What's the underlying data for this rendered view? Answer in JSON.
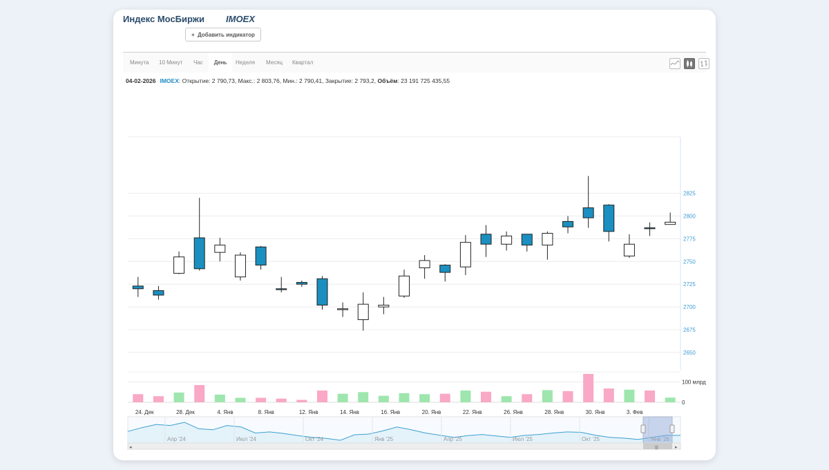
{
  "header": {
    "title": "Индекс МосБиржи",
    "ticker": "IMOEX",
    "add_indicator": "Добавить индикатор",
    "add_icon": "+"
  },
  "tabs": [
    {
      "label": "Минута",
      "active": false
    },
    {
      "label": "10 Минут",
      "active": false
    },
    {
      "label": "Час",
      "active": false
    },
    {
      "label": "День",
      "active": true
    },
    {
      "label": "Неделя",
      "active": false
    },
    {
      "label": "Месяц",
      "active": false
    },
    {
      "label": "Квартал",
      "active": false
    }
  ],
  "view_buttons": [
    "line-chart-icon",
    "candlestick-icon",
    "ohlc-bars-icon"
  ],
  "info": {
    "date": "04-02-2026",
    "symbol": "IMOEX",
    "text": ": Открытие: 2 790,73, Макс.: 2 803,76, Мин.: 2 790,41, Закрытие: 2 793,2,",
    "volume_label": "Объём",
    "volume_value": ": 23 191 725 435,55"
  },
  "colors": {
    "up": "#ffffff",
    "down": "#1a8fc0",
    "vol_up": "#9ee6ae",
    "vol_down": "#f9a8c6",
    "axis_text": "#3e9bd4",
    "navigator_line": "#3c9fd0"
  },
  "chart_data": {
    "type": "candlestick",
    "price_ticks": [
      2650,
      2675,
      2700,
      2725,
      2750,
      2775,
      2800,
      2825
    ],
    "price_range": [
      2637,
      2887
    ],
    "volume_tick_label": "100 млрд",
    "volume_zero_label": "0",
    "volume_range": [
      0,
      150
    ],
    "x_labels": [
      "24. Дек",
      "28. Дек",
      "4. Янв",
      "8. Янв",
      "12. Янв",
      "14. Янв",
      "16. Янв",
      "20. Янв",
      "22. Янв",
      "26. Янв",
      "28. Янв",
      "30. Янв",
      "3. Фев"
    ],
    "navigator_labels": [
      "Апр '24",
      "Июл '24",
      "Окт '24",
      "Янв '25",
      "Апр '25",
      "Июл '25",
      "Окт '25",
      "Янв '26"
    ],
    "candles": [
      {
        "o": 2723,
        "h": 2733,
        "l": 2711,
        "c": 2720,
        "v": 40
      },
      {
        "o": 2718,
        "h": 2723,
        "l": 2708,
        "c": 2713,
        "v": 30
      },
      {
        "o": 2737,
        "h": 2761,
        "l": 2736,
        "c": 2755,
        "v": 48
      },
      {
        "o": 2776,
        "h": 2820,
        "l": 2740,
        "c": 2742,
        "v": 85
      },
      {
        "o": 2760,
        "h": 2776,
        "l": 2750,
        "c": 2768,
        "v": 38
      },
      {
        "o": 2733,
        "h": 2760,
        "l": 2729,
        "c": 2757,
        "v": 22
      },
      {
        "o": 2766,
        "h": 2767,
        "l": 2741,
        "c": 2746,
        "v": 22
      },
      {
        "o": 2720,
        "h": 2733,
        "l": 2716,
        "c": 2719,
        "v": 18
      },
      {
        "o": 2727,
        "h": 2729,
        "l": 2722,
        "c": 2725,
        "v": 12
      },
      {
        "o": 2731,
        "h": 2734,
        "l": 2697,
        "c": 2702,
        "v": 58
      },
      {
        "o": 2697,
        "h": 2705,
        "l": 2689,
        "c": 2698,
        "v": 42
      },
      {
        "o": 2686,
        "h": 2716,
        "l": 2674,
        "c": 2703,
        "v": 50
      },
      {
        "o": 2700,
        "h": 2711,
        "l": 2692,
        "c": 2702,
        "v": 32
      },
      {
        "o": 2712,
        "h": 2741,
        "l": 2710,
        "c": 2734,
        "v": 45
      },
      {
        "o": 2743,
        "h": 2757,
        "l": 2731,
        "c": 2751,
        "v": 40
      },
      {
        "o": 2746,
        "h": 2747,
        "l": 2728,
        "c": 2738,
        "v": 42
      },
      {
        "o": 2744,
        "h": 2779,
        "l": 2735,
        "c": 2771,
        "v": 58
      },
      {
        "o": 2780,
        "h": 2790,
        "l": 2755,
        "c": 2769,
        "v": 52
      },
      {
        "o": 2769,
        "h": 2783,
        "l": 2762,
        "c": 2778,
        "v": 30
      },
      {
        "o": 2780,
        "h": 2780,
        "l": 2761,
        "c": 2768,
        "v": 40
      },
      {
        "o": 2768,
        "h": 2783,
        "l": 2752,
        "c": 2781,
        "v": 60
      },
      {
        "o": 2794,
        "h": 2800,
        "l": 2781,
        "c": 2788,
        "v": 55
      },
      {
        "o": 2809,
        "h": 2844,
        "l": 2787,
        "c": 2798,
        "v": 140
      },
      {
        "o": 2812,
        "h": 2813,
        "l": 2772,
        "c": 2783,
        "v": 68
      },
      {
        "o": 2756,
        "h": 2780,
        "l": 2754,
        "c": 2769,
        "v": 62
      },
      {
        "o": 2787,
        "h": 2793,
        "l": 2778,
        "c": 2786,
        "v": 58
      },
      {
        "o": 2790.73,
        "h": 2803.76,
        "l": 2790.41,
        "c": 2793.2,
        "v": 23
      }
    ],
    "navigator_series": [
      2975,
      3150,
      3300,
      3250,
      3400,
      3100,
      3050,
      3250,
      3180,
      2900,
      2950,
      2880,
      2780,
      2700,
      2650,
      2560,
      2820,
      2850,
      3000,
      3180,
      3050,
      2900,
      2800,
      2700,
      2780,
      2830,
      2760,
      2700,
      2790,
      2830,
      2900,
      2950,
      2930,
      2800,
      2700,
      2660,
      2600,
      2700,
      2790,
      2790
    ]
  }
}
